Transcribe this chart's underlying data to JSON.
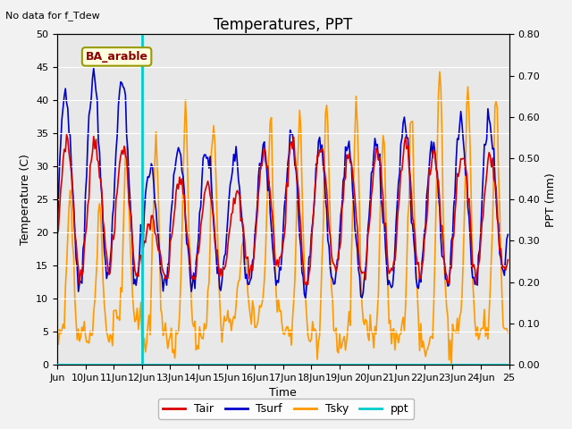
{
  "title": "Temperatures, PPT",
  "subtitle": "No data for f_Tdew",
  "annotation": "BA_arable",
  "xlabel": "Time",
  "ylabel_left": "Temperature (C)",
  "ylabel_right": "PPT (mm)",
  "ylim_left": [
    0,
    50
  ],
  "ylim_right": [
    0,
    0.8
  ],
  "x_tick_labels": [
    "Jun",
    "10Jun",
    "11Jun",
    "12Jun",
    "13Jun",
    "14Jun",
    "15Jun",
    "16Jun",
    "17Jun",
    "18Jun",
    "19Jun",
    "20Jun",
    "21Jun",
    "22Jun",
    "23Jun",
    "24Jun",
    "25"
  ],
  "x_tick_positions": [
    0,
    24,
    48,
    72,
    96,
    120,
    144,
    168,
    192,
    216,
    240,
    264,
    288,
    312,
    336,
    360,
    384
  ],
  "xlim": [
    0,
    384
  ],
  "vline_x": 72,
  "background_plot": "#e8e8e8",
  "background_fig": "#f2f2f2",
  "color_Tair": "#dd0000",
  "color_Tsurf": "#0000cc",
  "color_Tsky": "#ff9900",
  "color_ppt": "#00cccc",
  "linewidth_temp": 1.2,
  "linewidth_ppt": 1.5,
  "title_fontsize": 12,
  "label_fontsize": 9,
  "tick_fontsize": 8,
  "annotation_fontsize": 9,
  "subtitle_fontsize": 8
}
